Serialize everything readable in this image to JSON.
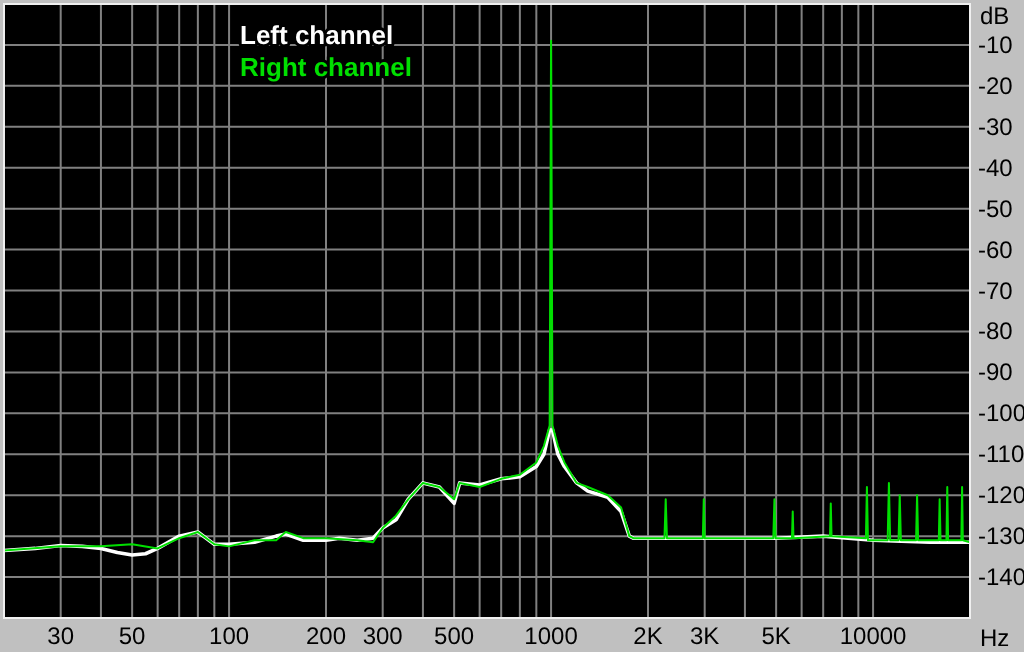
{
  "chart_data": {
    "type": "line",
    "xlabel": "Hz",
    "ylabel": "dB",
    "log": "x",
    "grid": true,
    "legend": "top left",
    "line_style": "solid",
    "xlim": [
      20,
      20000
    ],
    "ylim": [
      -150,
      0
    ],
    "xticks": [
      {
        "value": 20,
        "label": null
      },
      30,
      {
        "value": 40,
        "label": null
      },
      50,
      {
        "value": 60,
        "label": null
      },
      {
        "value": 70,
        "label": null
      },
      {
        "value": 80,
        "label": null
      },
      {
        "value": 90,
        "label": null
      },
      100,
      200,
      300,
      {
        "value": 400,
        "label": null
      },
      500,
      {
        "value": 600,
        "label": null
      },
      {
        "value": 700,
        "label": null
      },
      {
        "value": 800,
        "label": null
      },
      {
        "value": 900,
        "label": null
      },
      1000,
      {
        "value": 2000,
        "label": "2K"
      },
      {
        "value": 3000,
        "label": "3K"
      },
      {
        "value": 4000,
        "label": null
      },
      {
        "value": 5000,
        "label": "5K"
      },
      {
        "value": 6000,
        "label": null
      },
      {
        "value": 7000,
        "label": null
      },
      {
        "value": 8000,
        "label": null
      },
      {
        "value": 9000,
        "label": null
      },
      10000,
      {
        "value": 20000,
        "label": null
      }
    ],
    "yticks": [
      -10,
      -20,
      -30,
      -40,
      -50,
      -60,
      -70,
      -80,
      -90,
      -100,
      -110,
      -120,
      -130,
      -140
    ],
    "series": [
      {
        "name": "Left channel",
        "color": "#ffffff",
        "x": [
          20,
          25,
          30,
          35,
          40,
          45,
          50,
          55,
          60,
          70,
          80,
          90,
          100,
          120,
          140,
          150,
          170,
          200,
          220,
          250,
          280,
          300,
          330,
          360,
          400,
          450,
          500,
          520,
          600,
          700,
          800,
          900,
          950,
          990,
          1000,
          1010,
          1050,
          1100,
          1200,
          1300,
          1500,
          1650,
          1750,
          1800,
          2000,
          3000,
          5000,
          7000,
          10000,
          15000,
          20000
        ],
        "values": [
          -133.5,
          -133,
          -132.3,
          -132.5,
          -133,
          -134,
          -134.6,
          -134.3,
          -133,
          -130,
          -129,
          -132,
          -132,
          -131.5,
          -130,
          -129.5,
          -131,
          -131,
          -130.5,
          -131,
          -130.5,
          -128,
          -126,
          -121,
          -117,
          -118,
          -122,
          -117,
          -117.5,
          -116,
          -115.5,
          -113,
          -110,
          -104,
          null,
          -104,
          -110,
          -113,
          -117,
          -119,
          -120.5,
          -124,
          -130,
          -130.5,
          -130.5,
          -130.5,
          -130.5,
          -130,
          -131,
          -131.5,
          -131.5
        ]
      },
      {
        "name": "Right channel",
        "color": "#00e000",
        "x": [
          20,
          30,
          40,
          50,
          60,
          70,
          80,
          90,
          100,
          120,
          140,
          150,
          170,
          200,
          250,
          280,
          300,
          330,
          360,
          400,
          450,
          500,
          520,
          600,
          700,
          800,
          900,
          950,
          990,
          1000,
          1010,
          1050,
          1100,
          1200,
          1300,
          1500,
          1650,
          1750,
          1800,
          2000,
          2250,
          2270,
          2290,
          2960,
          2980,
          3000,
          4900,
          4940,
          4980,
          5600,
          5630,
          5660,
          7350,
          7390,
          7430,
          9500,
          9570,
          9640,
          11100,
          11200,
          11300,
          12000,
          12100,
          12200,
          13600,
          13700,
          13800,
          16000,
          16100,
          16200,
          16900,
          17000,
          17100,
          18800,
          18900,
          19000,
          20000
        ],
        "values": [
          -133.5,
          -132.5,
          -132.5,
          -132,
          -133,
          -130.5,
          -129,
          -132,
          -132.5,
          -131,
          -131,
          -129,
          -130.5,
          -130.5,
          -131,
          -131.5,
          -128,
          -125,
          -121,
          -117,
          -118,
          -121,
          -117,
          -118,
          -116,
          -115,
          -112,
          -108,
          -103,
          -9,
          -103,
          -108,
          -112,
          -117,
          -118,
          -120,
          -123,
          -130,
          -130.5,
          -130.5,
          -130.5,
          -121,
          -130.5,
          -130.5,
          -121,
          -130.5,
          -130.5,
          -121,
          -130.5,
          -130.5,
          -124,
          -130.5,
          -130,
          -122,
          -130,
          -130.5,
          -118,
          -131,
          -131,
          -117,
          -131,
          -131,
          -120,
          -131,
          -131,
          -120,
          -131,
          -131,
          -121,
          -131,
          -131,
          -118,
          -131,
          -131,
          -118,
          -131,
          -131.5
        ]
      }
    ]
  }
}
